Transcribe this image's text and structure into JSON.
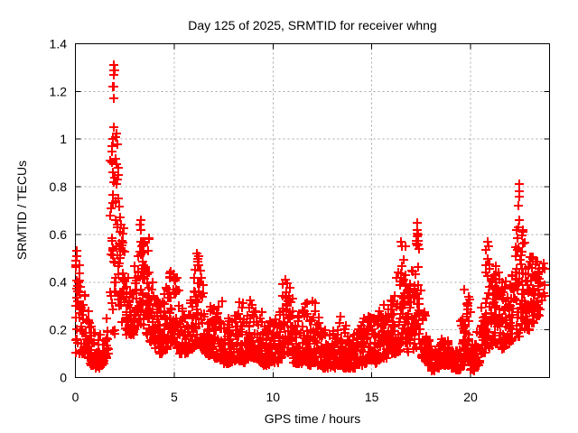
{
  "window": {
    "title": "Day 125 of 2025, SRMTID for receiver whng"
  },
  "chart_data": {
    "type": "scatter",
    "title": "Day 125 of 2025, SRMTID for receiver whng",
    "xlabel": "GPS time / hours",
    "ylabel": "SRMTID / TECUs",
    "xlim": [
      0,
      24
    ],
    "ylim": [
      0,
      1.4
    ],
    "xticks": [
      0,
      5,
      10,
      15,
      20
    ],
    "xtick_labels": [
      "0",
      "5",
      "10",
      "15",
      "20"
    ],
    "yticks": [
      0,
      0.2,
      0.4,
      0.6,
      0.8,
      1.0,
      1.2,
      1.4
    ],
    "ytick_labels": [
      "0",
      "0.2",
      "0.4",
      "0.6",
      "0.8",
      "1",
      "1.2",
      "1.4"
    ],
    "grid": true,
    "legend": "none",
    "series_name": "SRMTID",
    "marker": {
      "symbol": "plus",
      "color": "#ff0000",
      "size": 10,
      "stroke_width": 2
    },
    "colors": {
      "marker": "#ff0000",
      "grid": "#a8a8a8",
      "axis": "#000000",
      "text": "#000000",
      "background": "#ffffff"
    },
    "data_end_hour": 23.6,
    "envelope_bins": {
      "comment": "Each bin: [start_hour, y_min, y_max, point_count, optional_skew]; bin width dt hours; values read from plot",
      "dt": 0.25,
      "default_skew": 1.8,
      "bins": [
        [
          0.0,
          0.1,
          0.53,
          30,
          1.2
        ],
        [
          0.25,
          0.1,
          0.35,
          26
        ],
        [
          0.5,
          0.08,
          0.28,
          24
        ],
        [
          0.75,
          0.05,
          0.22,
          20
        ],
        [
          1.0,
          0.04,
          0.16,
          14
        ],
        [
          1.25,
          0.05,
          0.18,
          14
        ],
        [
          1.5,
          0.08,
          0.28,
          18
        ],
        [
          1.75,
          0.18,
          0.95,
          28,
          1.1
        ],
        [
          2.0,
          0.3,
          1.05,
          30,
          1.2
        ],
        [
          2.25,
          0.22,
          0.7,
          24,
          1.3
        ],
        [
          2.5,
          0.18,
          0.45,
          22
        ],
        [
          2.75,
          0.18,
          0.42,
          22
        ],
        [
          3.0,
          0.2,
          0.52,
          24,
          1.3
        ],
        [
          3.25,
          0.22,
          0.66,
          30,
          1.1
        ],
        [
          3.5,
          0.18,
          0.6,
          26,
          1.4
        ],
        [
          3.75,
          0.15,
          0.4,
          24
        ],
        [
          4.0,
          0.12,
          0.35,
          24
        ],
        [
          4.25,
          0.1,
          0.32,
          22
        ],
        [
          4.5,
          0.12,
          0.38,
          22
        ],
        [
          4.75,
          0.14,
          0.5,
          26,
          1.3
        ],
        [
          5.0,
          0.12,
          0.42,
          24
        ],
        [
          5.25,
          0.1,
          0.3,
          22
        ],
        [
          5.5,
          0.1,
          0.28,
          22
        ],
        [
          5.75,
          0.12,
          0.36,
          24
        ],
        [
          6.0,
          0.14,
          0.52,
          30,
          1.2
        ],
        [
          6.25,
          0.12,
          0.45,
          26,
          1.4
        ],
        [
          6.5,
          0.1,
          0.35,
          24
        ],
        [
          6.75,
          0.08,
          0.3,
          24
        ],
        [
          7.0,
          0.08,
          0.28,
          24
        ],
        [
          7.25,
          0.08,
          0.32,
          24
        ],
        [
          7.5,
          0.06,
          0.25,
          24
        ],
        [
          7.75,
          0.06,
          0.25,
          24
        ],
        [
          8.0,
          0.07,
          0.3,
          26
        ],
        [
          8.25,
          0.07,
          0.32,
          26
        ],
        [
          8.5,
          0.06,
          0.26,
          24
        ],
        [
          8.75,
          0.08,
          0.35,
          26,
          1.5
        ],
        [
          9.0,
          0.08,
          0.35,
          26,
          1.5
        ],
        [
          9.25,
          0.06,
          0.28,
          24
        ],
        [
          9.5,
          0.05,
          0.22,
          24
        ],
        [
          9.75,
          0.05,
          0.25,
          24
        ],
        [
          10.0,
          0.06,
          0.28,
          24
        ],
        [
          10.25,
          0.08,
          0.3,
          24
        ],
        [
          10.5,
          0.1,
          0.4,
          28,
          1.3
        ],
        [
          10.75,
          0.1,
          0.38,
          26,
          1.4
        ],
        [
          11.0,
          0.06,
          0.26,
          24
        ],
        [
          11.25,
          0.06,
          0.3,
          24
        ],
        [
          11.5,
          0.07,
          0.32,
          26
        ],
        [
          11.75,
          0.05,
          0.25,
          24
        ],
        [
          12.0,
          0.06,
          0.32,
          26
        ],
        [
          12.25,
          0.05,
          0.28,
          24
        ],
        [
          12.5,
          0.04,
          0.2,
          24
        ],
        [
          12.75,
          0.04,
          0.18,
          24
        ],
        [
          13.0,
          0.04,
          0.2,
          24
        ],
        [
          13.25,
          0.05,
          0.28,
          24
        ],
        [
          13.5,
          0.04,
          0.22,
          24
        ],
        [
          13.75,
          0.04,
          0.18,
          24
        ],
        [
          14.0,
          0.04,
          0.18,
          24
        ],
        [
          14.25,
          0.05,
          0.22,
          24
        ],
        [
          14.5,
          0.06,
          0.25,
          24
        ],
        [
          14.75,
          0.07,
          0.28,
          24
        ],
        [
          15.0,
          0.06,
          0.25,
          24
        ],
        [
          15.25,
          0.08,
          0.3,
          24
        ],
        [
          15.5,
          0.08,
          0.32,
          26
        ],
        [
          15.75,
          0.1,
          0.35,
          26
        ],
        [
          16.0,
          0.1,
          0.37,
          26
        ],
        [
          16.25,
          0.1,
          0.45,
          26,
          1.4
        ],
        [
          16.5,
          0.14,
          0.57,
          28,
          1.2
        ],
        [
          16.75,
          0.1,
          0.4,
          24
        ],
        [
          17.0,
          0.12,
          0.45,
          26,
          1.3
        ],
        [
          17.25,
          0.14,
          0.64,
          30,
          1.1
        ],
        [
          17.5,
          0.08,
          0.3,
          24
        ],
        [
          17.75,
          0.05,
          0.18,
          24
        ],
        [
          18.0,
          0.03,
          0.12,
          22
        ],
        [
          18.25,
          0.04,
          0.15,
          22
        ],
        [
          18.5,
          0.05,
          0.2,
          24
        ],
        [
          18.75,
          0.05,
          0.18,
          22
        ],
        [
          19.0,
          0.04,
          0.12,
          22
        ],
        [
          19.25,
          0.03,
          0.12,
          22
        ],
        [
          19.5,
          0.05,
          0.25,
          24
        ],
        [
          19.75,
          0.07,
          0.36,
          26,
          1.3
        ],
        [
          20.0,
          0.03,
          0.15,
          22
        ],
        [
          20.25,
          0.05,
          0.2,
          24
        ],
        [
          20.5,
          0.1,
          0.35,
          26
        ],
        [
          20.75,
          0.12,
          0.55,
          28,
          1.2
        ],
        [
          21.0,
          0.12,
          0.45,
          26,
          1.3
        ],
        [
          21.25,
          0.14,
          0.48,
          26,
          1.3
        ],
        [
          21.5,
          0.12,
          0.4,
          26
        ],
        [
          21.75,
          0.14,
          0.42,
          26
        ],
        [
          22.0,
          0.15,
          0.45,
          26,
          1.3
        ],
        [
          22.25,
          0.17,
          0.6,
          26,
          1.4
        ],
        [
          22.5,
          0.2,
          0.62,
          28,
          1.2
        ],
        [
          22.75,
          0.2,
          0.5,
          28,
          1.2
        ],
        [
          23.0,
          0.22,
          0.52,
          28,
          1.1
        ],
        [
          23.25,
          0.25,
          0.5,
          26,
          1.1
        ],
        [
          23.5,
          0.28,
          0.48,
          10,
          1.0
        ]
      ]
    },
    "peak_points": [
      [
        0.05,
        0.53
      ],
      [
        0.07,
        0.51
      ],
      [
        0.04,
        0.49
      ],
      [
        1.9,
        1.22
      ],
      [
        1.92,
        1.22
      ],
      [
        1.93,
        1.27
      ],
      [
        1.94,
        1.31
      ],
      [
        1.95,
        1.29
      ],
      [
        1.97,
        1.29
      ],
      [
        1.96,
        1.17
      ],
      [
        1.93,
        1.05
      ],
      [
        1.9,
        1.0
      ],
      [
        1.87,
        0.97
      ],
      [
        3.3,
        0.66
      ],
      [
        3.27,
        0.64
      ],
      [
        3.33,
        0.62
      ],
      [
        10.62,
        0.41
      ],
      [
        16.48,
        0.57
      ],
      [
        16.52,
        0.55
      ],
      [
        17.28,
        0.65
      ],
      [
        17.32,
        0.62
      ],
      [
        19.68,
        0.37
      ],
      [
        20.88,
        0.57
      ],
      [
        20.92,
        0.55
      ],
      [
        22.43,
        0.72
      ],
      [
        22.45,
        0.81
      ],
      [
        22.46,
        0.78
      ],
      [
        22.47,
        0.76
      ],
      [
        22.48,
        0.66
      ],
      [
        22.4,
        0.63
      ],
      [
        22.35,
        0.62
      ]
    ],
    "random_seed": 125
  }
}
